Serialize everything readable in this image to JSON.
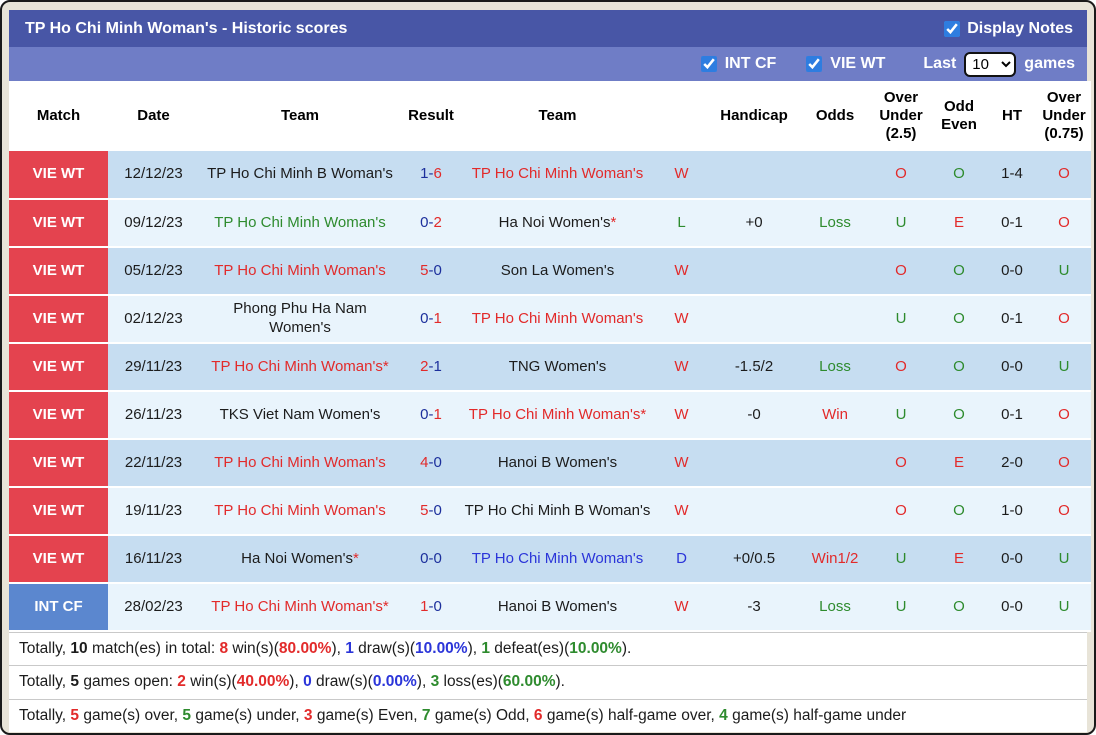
{
  "colors": {
    "red": "#e22a2a",
    "green": "#2e8b2e",
    "navy": "#1c2f9c",
    "blue": "#2b35d9",
    "black": "#1c1c1c"
  },
  "titlebar": {
    "title": "TP Ho Chi Minh Woman's - Historic scores",
    "display_notes_label": "Display Notes",
    "display_notes_checked": true
  },
  "filterbar": {
    "int_cf_label": "INT CF",
    "int_cf_checked": true,
    "vie_wt_label": "VIE WT",
    "vie_wt_checked": true,
    "last_label": "Last",
    "last_value": "10",
    "games_label": "games"
  },
  "table": {
    "columns": [
      "Match",
      "Date",
      "Team",
      "Result",
      "Team",
      "",
      "Handicap",
      "Odds",
      "Over Under (2.5)",
      "Odd Even",
      "HT",
      "Over Under (0.75)"
    ],
    "rows": [
      {
        "league": "VIE WT",
        "league_type": "vie",
        "date": "12/12/23",
        "home": {
          "name": "TP Ho Chi Minh B Woman's",
          "color": "black",
          "star": false
        },
        "score": {
          "home": "1",
          "home_color": "navy",
          "away": "6",
          "away_color": "red"
        },
        "away": {
          "name": "TP Ho Chi Minh Woman's",
          "color": "red",
          "star": false
        },
        "wdl": {
          "t": "W",
          "color": "red"
        },
        "handicap": "",
        "odds": {
          "t": "",
          "color": "black"
        },
        "ou25": {
          "t": "O",
          "color": "red"
        },
        "oddeven": {
          "t": "O",
          "color": "green"
        },
        "ht": "1-4",
        "ou075": {
          "t": "O",
          "color": "red"
        }
      },
      {
        "league": "VIE WT",
        "league_type": "vie",
        "date": "09/12/23",
        "home": {
          "name": "TP Ho Chi Minh Woman's",
          "color": "green",
          "star": false
        },
        "score": {
          "home": "0",
          "home_color": "navy",
          "away": "2",
          "away_color": "red"
        },
        "away": {
          "name": "Ha Noi Women's",
          "color": "black",
          "star": true
        },
        "wdl": {
          "t": "L",
          "color": "green"
        },
        "handicap": "+0",
        "odds": {
          "t": "Loss",
          "color": "green"
        },
        "ou25": {
          "t": "U",
          "color": "green"
        },
        "oddeven": {
          "t": "E",
          "color": "red"
        },
        "ht": "0-1",
        "ou075": {
          "t": "O",
          "color": "red"
        }
      },
      {
        "league": "VIE WT",
        "league_type": "vie",
        "date": "05/12/23",
        "home": {
          "name": "TP Ho Chi Minh Woman's",
          "color": "red",
          "star": false
        },
        "score": {
          "home": "5",
          "home_color": "red",
          "away": "0",
          "away_color": "navy"
        },
        "away": {
          "name": "Son La Women's",
          "color": "black",
          "star": false
        },
        "wdl": {
          "t": "W",
          "color": "red"
        },
        "handicap": "",
        "odds": {
          "t": "",
          "color": "black"
        },
        "ou25": {
          "t": "O",
          "color": "red"
        },
        "oddeven": {
          "t": "O",
          "color": "green"
        },
        "ht": "0-0",
        "ou075": {
          "t": "U",
          "color": "green"
        }
      },
      {
        "league": "VIE WT",
        "league_type": "vie",
        "date": "02/12/23",
        "home": {
          "name": "Phong Phu Ha Nam Women's",
          "color": "black",
          "star": false
        },
        "score": {
          "home": "0",
          "home_color": "navy",
          "away": "1",
          "away_color": "red"
        },
        "away": {
          "name": "TP Ho Chi Minh Woman's",
          "color": "red",
          "star": false
        },
        "wdl": {
          "t": "W",
          "color": "red"
        },
        "handicap": "",
        "odds": {
          "t": "",
          "color": "black"
        },
        "ou25": {
          "t": "U",
          "color": "green"
        },
        "oddeven": {
          "t": "O",
          "color": "green"
        },
        "ht": "0-1",
        "ou075": {
          "t": "O",
          "color": "red"
        }
      },
      {
        "league": "VIE WT",
        "league_type": "vie",
        "date": "29/11/23",
        "home": {
          "name": "TP Ho Chi Minh Woman's",
          "color": "red",
          "star": true
        },
        "score": {
          "home": "2",
          "home_color": "red",
          "away": "1",
          "away_color": "navy"
        },
        "away": {
          "name": "TNG Women's",
          "color": "black",
          "star": false
        },
        "wdl": {
          "t": "W",
          "color": "red"
        },
        "handicap": "-1.5/2",
        "odds": {
          "t": "Loss",
          "color": "green"
        },
        "ou25": {
          "t": "O",
          "color": "red"
        },
        "oddeven": {
          "t": "O",
          "color": "green"
        },
        "ht": "0-0",
        "ou075": {
          "t": "U",
          "color": "green"
        }
      },
      {
        "league": "VIE WT",
        "league_type": "vie",
        "date": "26/11/23",
        "home": {
          "name": "TKS Viet Nam Women's",
          "color": "black",
          "star": false
        },
        "score": {
          "home": "0",
          "home_color": "navy",
          "away": "1",
          "away_color": "red"
        },
        "away": {
          "name": "TP Ho Chi Minh Woman's",
          "color": "red",
          "star": true
        },
        "wdl": {
          "t": "W",
          "color": "red"
        },
        "handicap": "-0",
        "odds": {
          "t": "Win",
          "color": "red"
        },
        "ou25": {
          "t": "U",
          "color": "green"
        },
        "oddeven": {
          "t": "O",
          "color": "green"
        },
        "ht": "0-1",
        "ou075": {
          "t": "O",
          "color": "red"
        }
      },
      {
        "league": "VIE WT",
        "league_type": "vie",
        "date": "22/11/23",
        "home": {
          "name": "TP Ho Chi Minh Woman's",
          "color": "red",
          "star": false
        },
        "score": {
          "home": "4",
          "home_color": "red",
          "away": "0",
          "away_color": "navy"
        },
        "away": {
          "name": "Hanoi B Women's",
          "color": "black",
          "star": false
        },
        "wdl": {
          "t": "W",
          "color": "red"
        },
        "handicap": "",
        "odds": {
          "t": "",
          "color": "black"
        },
        "ou25": {
          "t": "O",
          "color": "red"
        },
        "oddeven": {
          "t": "E",
          "color": "red"
        },
        "ht": "2-0",
        "ou075": {
          "t": "O",
          "color": "red"
        }
      },
      {
        "league": "VIE WT",
        "league_type": "vie",
        "date": "19/11/23",
        "home": {
          "name": "TP Ho Chi Minh Woman's",
          "color": "red",
          "star": false
        },
        "score": {
          "home": "5",
          "home_color": "red",
          "away": "0",
          "away_color": "navy"
        },
        "away": {
          "name": "TP Ho Chi Minh B Woman's",
          "color": "black",
          "star": false
        },
        "wdl": {
          "t": "W",
          "color": "red"
        },
        "handicap": "",
        "odds": {
          "t": "",
          "color": "black"
        },
        "ou25": {
          "t": "O",
          "color": "red"
        },
        "oddeven": {
          "t": "O",
          "color": "green"
        },
        "ht": "1-0",
        "ou075": {
          "t": "O",
          "color": "red"
        }
      },
      {
        "league": "VIE WT",
        "league_type": "vie",
        "date": "16/11/23",
        "home": {
          "name": "Ha Noi Women's",
          "color": "black",
          "star": true
        },
        "score": {
          "home": "0",
          "home_color": "navy",
          "away": "0",
          "away_color": "navy"
        },
        "away": {
          "name": "TP Ho Chi Minh Woman's",
          "color": "blue",
          "star": false
        },
        "wdl": {
          "t": "D",
          "color": "blue"
        },
        "handicap": "+0/0.5",
        "odds": {
          "t": "Win1/2",
          "color": "red"
        },
        "ou25": {
          "t": "U",
          "color": "green"
        },
        "oddeven": {
          "t": "E",
          "color": "red"
        },
        "ht": "0-0",
        "ou075": {
          "t": "U",
          "color": "green"
        }
      },
      {
        "league": "INT CF",
        "league_type": "int",
        "date": "28/02/23",
        "home": {
          "name": "TP Ho Chi Minh Woman's",
          "color": "red",
          "star": true
        },
        "score": {
          "home": "1",
          "home_color": "red",
          "away": "0",
          "away_color": "navy"
        },
        "away": {
          "name": "Hanoi B Women's",
          "color": "black",
          "star": false
        },
        "wdl": {
          "t": "W",
          "color": "red"
        },
        "handicap": "-3",
        "odds": {
          "t": "Loss",
          "color": "green"
        },
        "ou25": {
          "t": "U",
          "color": "green"
        },
        "oddeven": {
          "t": "O",
          "color": "green"
        },
        "ht": "0-0",
        "ou075": {
          "t": "U",
          "color": "green"
        }
      }
    ]
  },
  "summary": {
    "lines": [
      [
        {
          "t": "Totally, "
        },
        {
          "t": "10",
          "b": 1
        },
        {
          "t": " match(es) in total: "
        },
        {
          "t": "8",
          "b": 1,
          "c": "red"
        },
        {
          "t": " win(s)("
        },
        {
          "t": "80.00%",
          "b": 1,
          "c": "red"
        },
        {
          "t": "), "
        },
        {
          "t": "1",
          "b": 1,
          "c": "blue"
        },
        {
          "t": " draw(s)("
        },
        {
          "t": "10.00%",
          "b": 1,
          "c": "blue"
        },
        {
          "t": "), "
        },
        {
          "t": "1",
          "b": 1,
          "c": "green"
        },
        {
          "t": " defeat(es)("
        },
        {
          "t": "10.00%",
          "b": 1,
          "c": "green"
        },
        {
          "t": ")."
        }
      ],
      [
        {
          "t": "Totally, "
        },
        {
          "t": "5",
          "b": 1
        },
        {
          "t": " games open: "
        },
        {
          "t": "2",
          "b": 1,
          "c": "red"
        },
        {
          "t": " win(s)("
        },
        {
          "t": "40.00%",
          "b": 1,
          "c": "red"
        },
        {
          "t": "), "
        },
        {
          "t": "0",
          "b": 1,
          "c": "blue"
        },
        {
          "t": " draw(s)("
        },
        {
          "t": "0.00%",
          "b": 1,
          "c": "blue"
        },
        {
          "t": "), "
        },
        {
          "t": "3",
          "b": 1,
          "c": "green"
        },
        {
          "t": " loss(es)("
        },
        {
          "t": "60.00%",
          "b": 1,
          "c": "green"
        },
        {
          "t": ")."
        }
      ],
      [
        {
          "t": "Totally, "
        },
        {
          "t": "5",
          "b": 1,
          "c": "red"
        },
        {
          "t": " game(s) over, "
        },
        {
          "t": "5",
          "b": 1,
          "c": "green"
        },
        {
          "t": " game(s) under, "
        },
        {
          "t": "3",
          "b": 1,
          "c": "red"
        },
        {
          "t": " game(s) Even, "
        },
        {
          "t": "7",
          "b": 1,
          "c": "green"
        },
        {
          "t": " game(s) Odd, "
        },
        {
          "t": "6",
          "b": 1,
          "c": "red"
        },
        {
          "t": " game(s) half-game over, "
        },
        {
          "t": "4",
          "b": 1,
          "c": "green"
        },
        {
          "t": " game(s) half-game under"
        }
      ]
    ]
  }
}
